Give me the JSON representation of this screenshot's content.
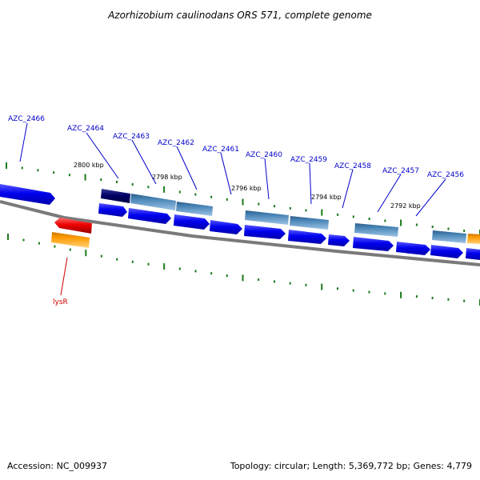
{
  "title": "Azorhizobium caulinodans ORS 571, complete genome",
  "accession": "Accession: NC_009937",
  "summary": "Topology: circular; Length: 5,369,772 bp; Genes: 4,779",
  "colors": {
    "backbone": "#808080",
    "tick": "#1a7a1a",
    "forward_cds": "#0000ee",
    "dark_cds": "#000066",
    "steel_cds": "#4682b4",
    "reverse_red": "#ee0000",
    "reverse_orange": "#ff9900",
    "gene_label": "#0000cc",
    "gene_label_red": "#cc0000"
  },
  "scale_labels": [
    "2800 kbp",
    "2798 kbp",
    "2796 kbp",
    "2794 kbp",
    "2792 kbp"
  ],
  "gene_labels": [
    "AZC_2466",
    "AZC_2464",
    "AZC_2463",
    "AZC_2462",
    "AZC_2461",
    "AZC_2460",
    "AZC_2459",
    "AZC_2458",
    "AZC_2457",
    "AZC_2456"
  ],
  "reverse_labels": [
    "lysR"
  ]
}
